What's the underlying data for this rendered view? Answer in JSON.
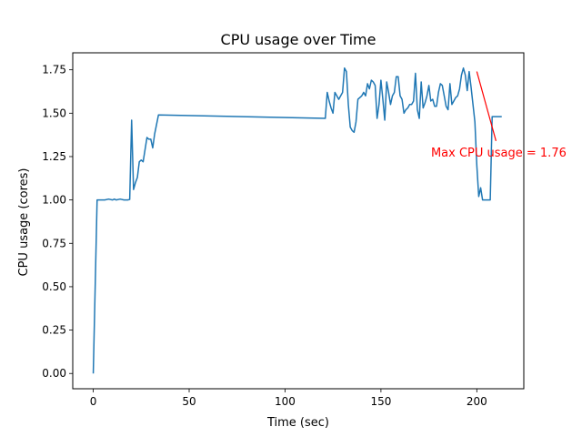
{
  "colors": {
    "line": "#1f77b4",
    "annotation": "#ff0000",
    "axes": "#000000",
    "background": "#ffffff"
  },
  "chart_data": {
    "type": "line",
    "title": "CPU usage over Time",
    "xlabel": "Time (sec)",
    "ylabel": "CPU usage (cores)",
    "xlim": [
      -10.7,
      224.5
    ],
    "ylim": [
      -0.088,
      1.848
    ],
    "xticks": [
      0,
      50,
      100,
      150,
      200
    ],
    "xtick_labels": [
      "0",
      "50",
      "100",
      "150",
      "200"
    ],
    "yticks": [
      0.0,
      0.25,
      0.5,
      0.75,
      1.0,
      1.25,
      1.5,
      1.75
    ],
    "ytick_labels": [
      "0.00",
      "0.25",
      "0.50",
      "0.75",
      "1.00",
      "1.25",
      "1.50",
      "1.75"
    ],
    "grid": false,
    "legend": "none",
    "series": [
      {
        "x": [
          0,
          2,
          4,
          6,
          8,
          10,
          11,
          12,
          14,
          16,
          18,
          19,
          20,
          21,
          22,
          23,
          24,
          25,
          26,
          28,
          29,
          30,
          31,
          32,
          34,
          121,
          122,
          123,
          124,
          125,
          126,
          127,
          128,
          129,
          130,
          131,
          132,
          133,
          134,
          135,
          136,
          137,
          138,
          139,
          140,
          141,
          142,
          143,
          144,
          145,
          146,
          147,
          148,
          149,
          150,
          151,
          152,
          153,
          154,
          155,
          156,
          157,
          158,
          159,
          160,
          161,
          162,
          163,
          164,
          165,
          166,
          167,
          168,
          169,
          170,
          171,
          172,
          173,
          174,
          175,
          176,
          177,
          178,
          179,
          180,
          181,
          182,
          183,
          184,
          185,
          186,
          187,
          188,
          189,
          190,
          191,
          192,
          193,
          194,
          195,
          196,
          197,
          198,
          199,
          200,
          201,
          202,
          203,
          204,
          205,
          206,
          207,
          208,
          209,
          210,
          211,
          212,
          213
        ],
        "y": [
          0.0,
          1.0,
          1.0,
          1.0,
          1.005,
          1.0,
          1.005,
          1.0,
          1.005,
          1.0,
          1.0,
          1.003,
          1.46,
          1.06,
          1.1,
          1.13,
          1.22,
          1.23,
          1.22,
          1.36,
          1.35,
          1.35,
          1.3,
          1.38,
          1.49,
          1.47,
          1.62,
          1.57,
          1.53,
          1.5,
          1.62,
          1.6,
          1.58,
          1.6,
          1.62,
          1.76,
          1.74,
          1.55,
          1.42,
          1.4,
          1.39,
          1.45,
          1.58,
          1.59,
          1.6,
          1.62,
          1.6,
          1.67,
          1.64,
          1.69,
          1.68,
          1.66,
          1.47,
          1.55,
          1.69,
          1.58,
          1.46,
          1.68,
          1.62,
          1.55,
          1.6,
          1.62,
          1.71,
          1.71,
          1.6,
          1.58,
          1.5,
          1.52,
          1.53,
          1.55,
          1.55,
          1.57,
          1.73,
          1.52,
          1.47,
          1.68,
          1.53,
          1.56,
          1.6,
          1.66,
          1.57,
          1.58,
          1.54,
          1.54,
          1.62,
          1.67,
          1.66,
          1.6,
          1.54,
          1.52,
          1.67,
          1.55,
          1.57,
          1.59,
          1.6,
          1.64,
          1.72,
          1.76,
          1.72,
          1.63,
          1.74,
          1.65,
          1.55,
          1.45,
          1.2,
          1.02,
          1.07,
          1.0,
          1.0,
          1.0,
          1.0,
          1.0,
          1.48,
          1.48,
          1.48,
          1.48,
          1.48,
          1.48
        ]
      }
    ],
    "annotation": {
      "text": "Max CPU usage = 1.76",
      "point": [
        200,
        1.74
      ],
      "text_anchor_point": [
        210,
        1.34
      ]
    }
  }
}
